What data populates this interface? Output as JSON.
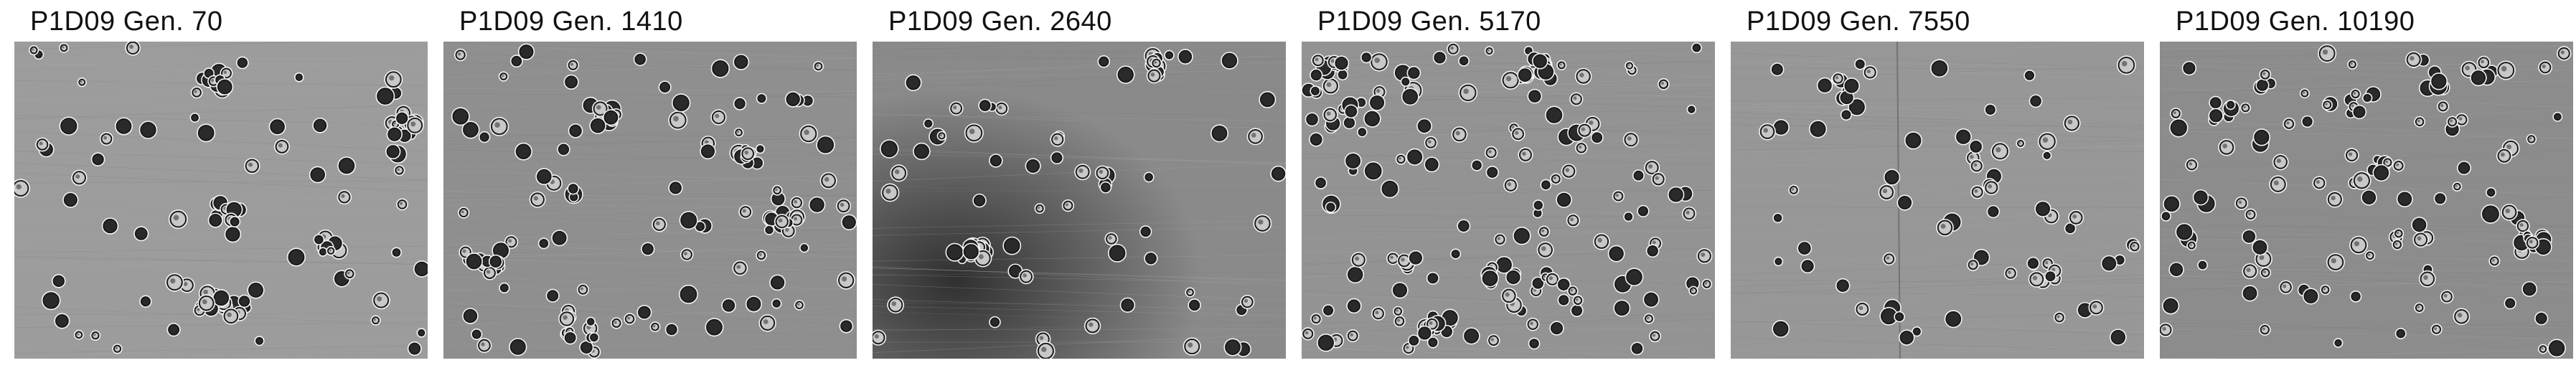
{
  "panels": [
    {
      "title": "P1D09 Gen. 70",
      "density": 60,
      "clusters": 6,
      "bg": "#9c9c9c"
    },
    {
      "title": "P1D09 Gen. 1410",
      "density": 95,
      "clusters": 5,
      "bg": "#8f8f8f"
    },
    {
      "title": "P1D09 Gen. 2640",
      "density": 55,
      "clusters": 3,
      "bg": "#8a8a8a"
    },
    {
      "title": "P1D09 Gen. 5170",
      "density": 140,
      "clusters": 8,
      "bg": "#939393"
    },
    {
      "title": "P1D09 Gen. 7550",
      "density": 55,
      "clusters": 4,
      "bg": "#979797"
    },
    {
      "title": "P1D09 Gen. 10190",
      "density": 110,
      "clusters": 5,
      "bg": "#8c8c8c"
    }
  ]
}
